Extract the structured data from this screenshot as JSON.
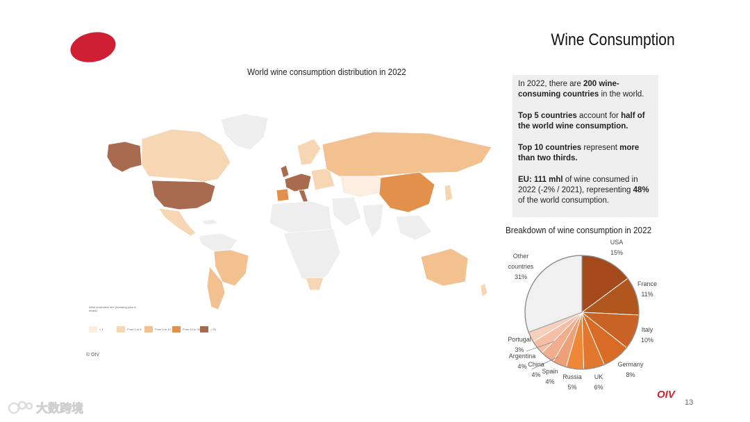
{
  "slide": {
    "title": "Wine Consumption",
    "map_title": "World wine consumption distribution in 2022",
    "copyright": "© OIV",
    "page_number": "13",
    "brand": "OIV",
    "watermark": "大数跨境"
  },
  "legend": {
    "title": "Wine production mhl (including juice & musts)",
    "items": [
      {
        "label": "< 1",
        "color": "#fbeee1"
      },
      {
        "label": "From 1 to 5",
        "color": "#f7d6b4"
      },
      {
        "label": "From 5 to 10",
        "color": "#f3c08f"
      },
      {
        "label": "From 10 to 20",
        "color": "#e2904c"
      },
      {
        "label": "> 20",
        "color": "#a86b4f"
      }
    ]
  },
  "info": {
    "p1_a": "In 2022, there are ",
    "p1_b": "200 wine-consuming countries",
    "p1_c": " in the world.",
    "p2_a": "Top 5 countries",
    "p2_b": " account for ",
    "p2_c": "half of the world wine consumption.",
    "p3_a": "Top 10 countries",
    "p3_b": " represent ",
    "p3_c": "more than two thirds.",
    "p4_a": "EU: 111 mhl",
    "p4_b": " of wine consumed in 2022 (-2% / 2021), representing ",
    "p4_c": "48%",
    "p4_d": " of the world consumption."
  },
  "chart_data": {
    "type": "pie",
    "title": "Breakdown of wine consumption in 2022",
    "slices": [
      {
        "name": "USA",
        "value": 15,
        "label": "15%",
        "color": "#a3491c"
      },
      {
        "name": "France",
        "value": 11,
        "label": "11%",
        "color": "#b0561f"
      },
      {
        "name": "Italy",
        "value": 10,
        "label": "10%",
        "color": "#c96325"
      },
      {
        "name": "Germany",
        "value": 8,
        "label": "8%",
        "color": "#d86c26"
      },
      {
        "name": "UK",
        "value": 6,
        "label": "6%",
        "color": "#e27830"
      },
      {
        "name": "Russia",
        "value": 5,
        "label": "5%",
        "color": "#ee8838"
      },
      {
        "name": "Spain",
        "value": 4,
        "label": "4%",
        "color": "#eea078"
      },
      {
        "name": "China",
        "value": 4,
        "label": "4%",
        "color": "#f1ad8c"
      },
      {
        "name": "Argentina",
        "value": 4,
        "label": "4%",
        "color": "#f4bfa6"
      },
      {
        "name": "Portugal",
        "value": 3,
        "label": "3%",
        "color": "#f7cfbd"
      },
      {
        "name": "Other countries",
        "value": 31,
        "label": "31%",
        "color": "#f0f0f0"
      }
    ]
  }
}
